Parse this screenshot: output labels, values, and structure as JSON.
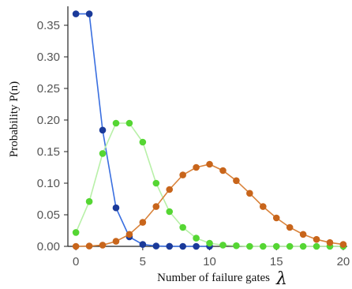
{
  "chart_data": {
    "type": "line",
    "title": "",
    "xlabel": "Number of failure gates",
    "xlabel_symbol": "λ",
    "ylabel": "Probability P(n)",
    "xlim": [
      -0.6,
      20.3
    ],
    "ylim": [
      0,
      0.38
    ],
    "x_ticks": [
      "0",
      "5",
      "10",
      "15",
      "20"
    ],
    "y_ticks": [
      "0.00",
      "0.05",
      "0.10",
      "0.15",
      "0.20",
      "0.25",
      "0.30",
      "0.35"
    ],
    "grid": false,
    "legend": "none",
    "series": [
      {
        "color": "#1a3a9a",
        "line_color": "#3a6fe0",
        "x": [
          0,
          1,
          2,
          3,
          4,
          5,
          6,
          7,
          8,
          9,
          10
        ],
        "values": [
          0.368,
          0.368,
          0.184,
          0.061,
          0.015,
          0.003,
          0.0005,
          0.0001,
          0.0,
          0.0,
          0.0
        ]
      },
      {
        "color": "#55d633",
        "line_color": "#b8f0a8",
        "x": [
          0,
          1,
          2,
          3,
          4,
          5,
          6,
          7,
          8,
          9,
          10,
          11,
          12,
          13,
          14,
          15,
          16,
          17,
          18,
          19,
          20
        ],
        "values": [
          0.022,
          0.071,
          0.147,
          0.195,
          0.195,
          0.165,
          0.1,
          0.055,
          0.03,
          0.013,
          0.005,
          0.002,
          0.001,
          0.0,
          0.0,
          0.0,
          0.0,
          0.0,
          0.0,
          0.0,
          0.0
        ]
      },
      {
        "color": "#c8651b",
        "line_color": "#d9823a",
        "x": [
          0,
          1,
          2,
          3,
          4,
          5,
          6,
          7,
          8,
          9,
          10,
          11,
          12,
          13,
          14,
          15,
          16,
          17,
          18,
          19,
          20
        ],
        "values": [
          0.0,
          0.0005,
          0.002,
          0.008,
          0.019,
          0.038,
          0.063,
          0.09,
          0.113,
          0.125,
          0.13,
          0.12,
          0.104,
          0.084,
          0.063,
          0.045,
          0.03,
          0.019,
          0.011,
          0.006,
          0.003
        ]
      }
    ]
  }
}
